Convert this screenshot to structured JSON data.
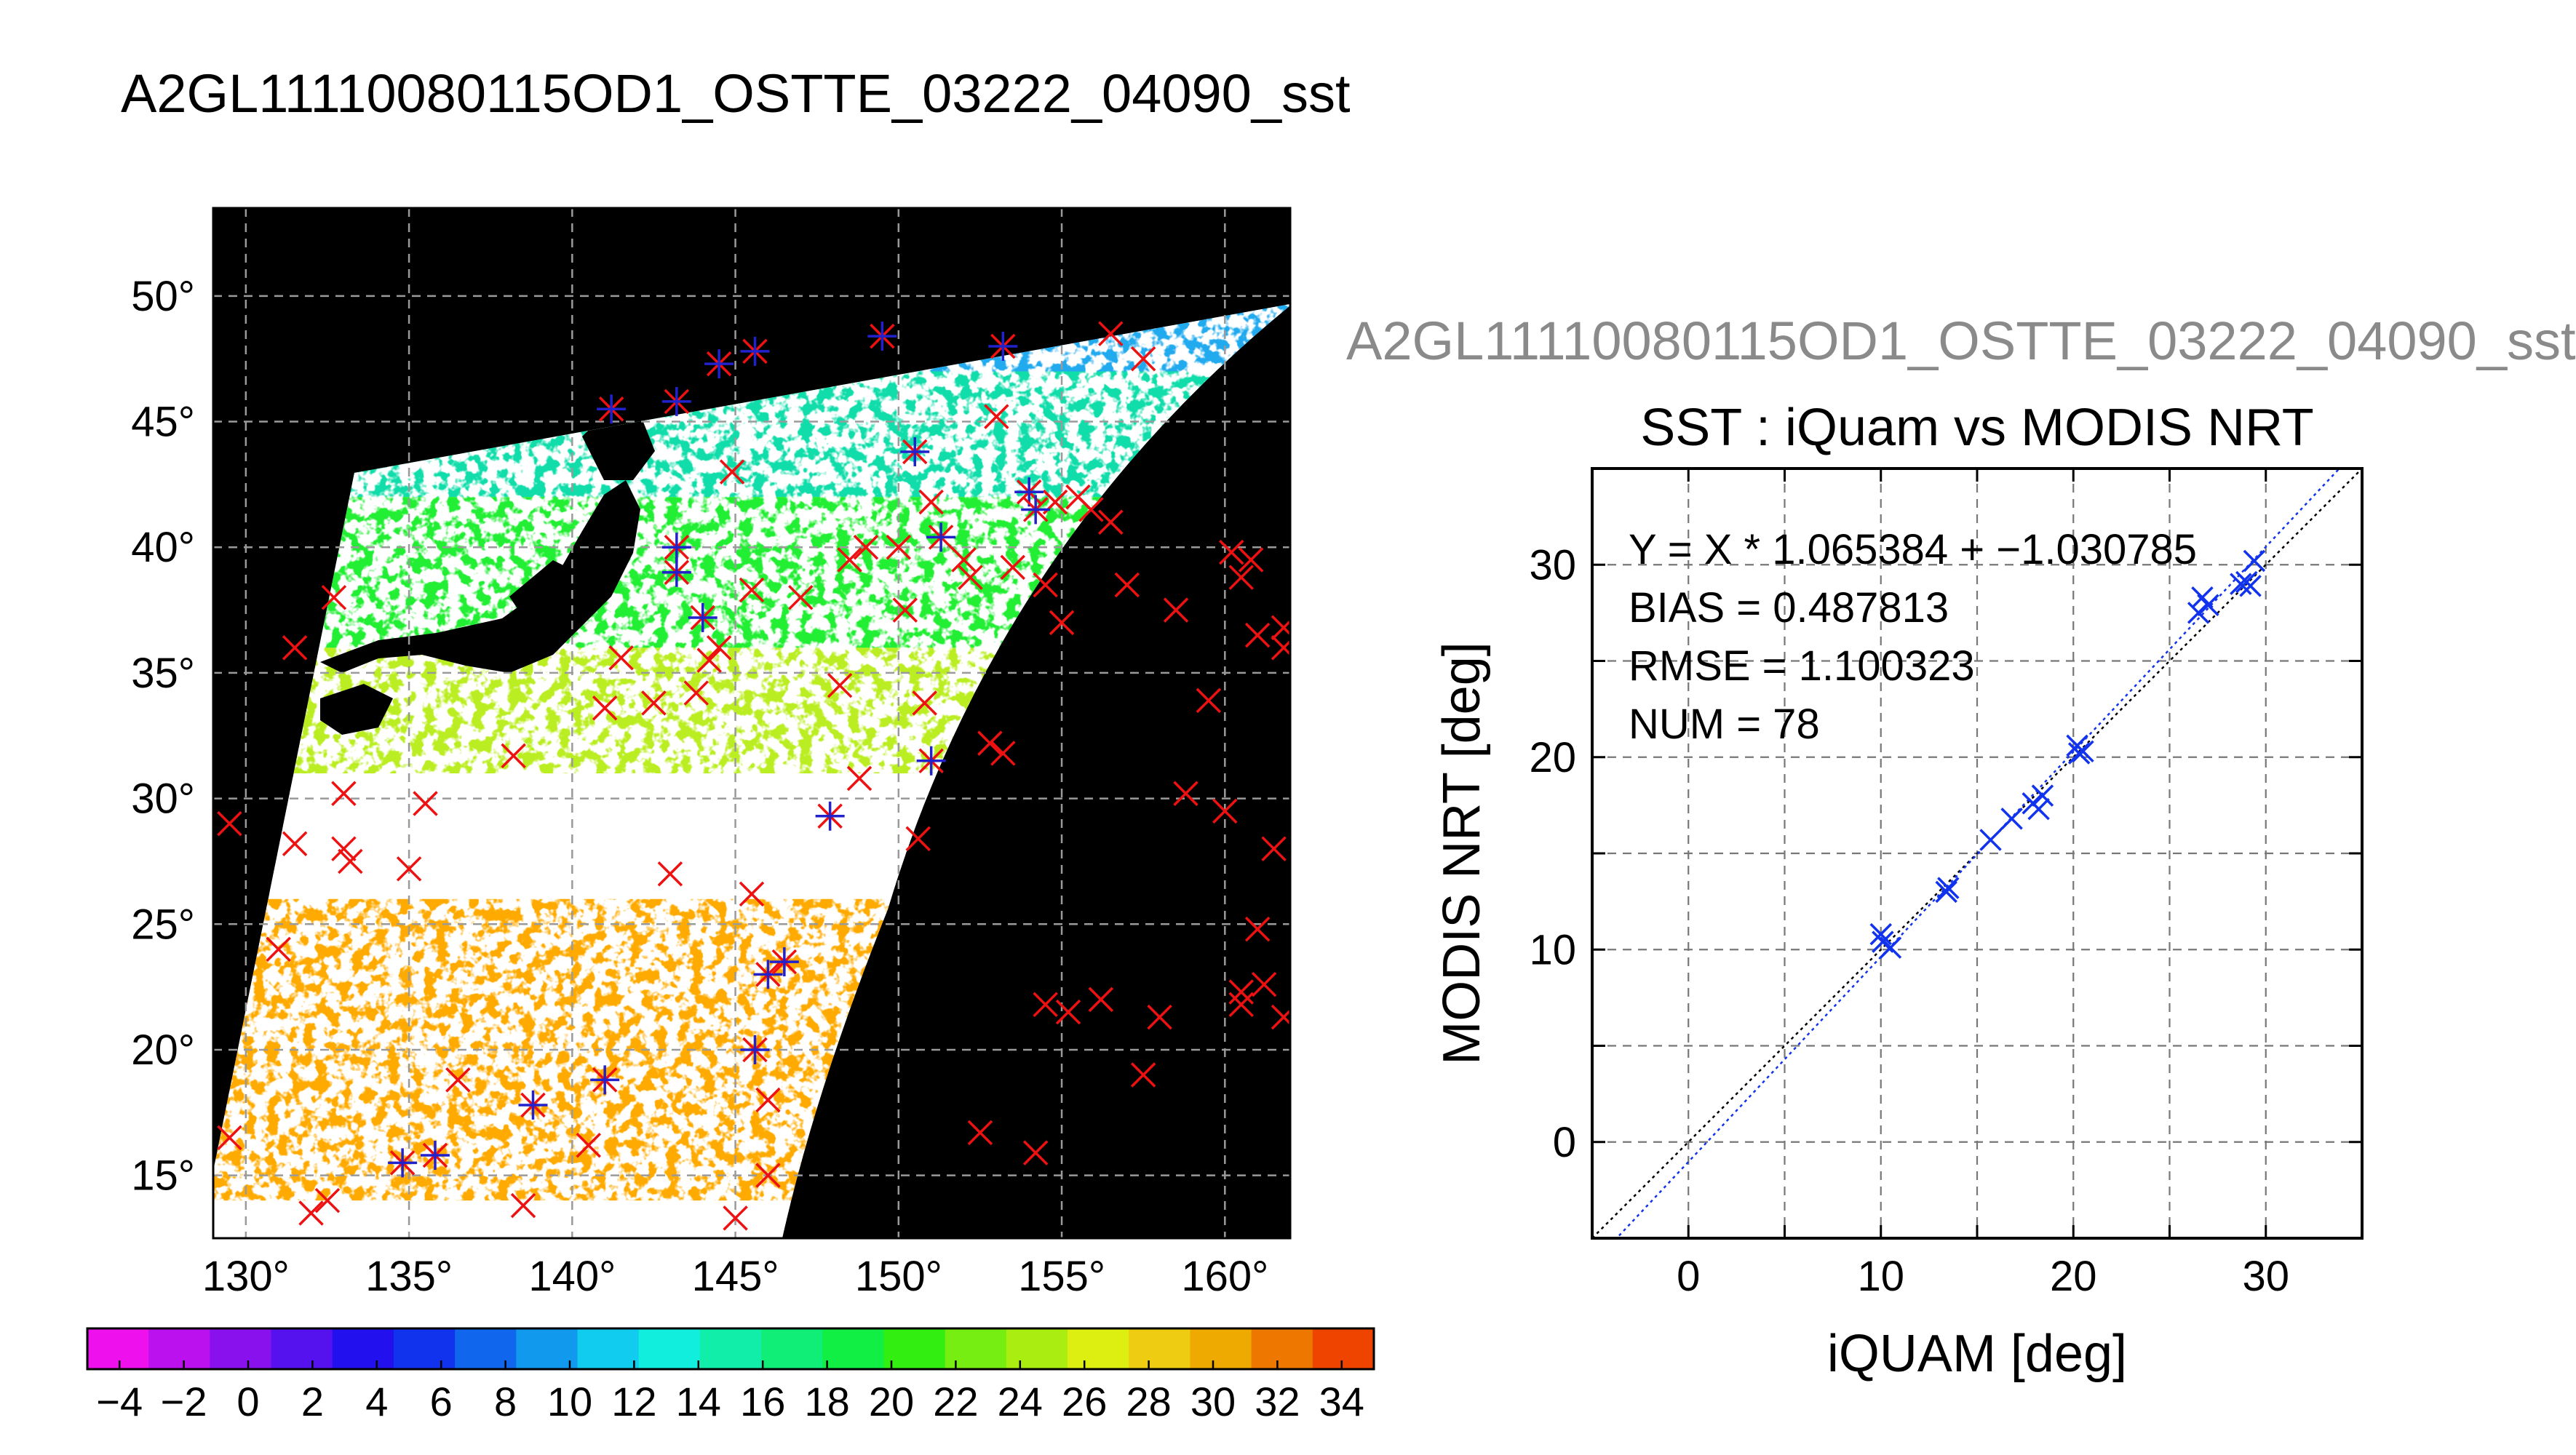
{
  "main_title": "A2GL11110080115OD1_OSTTE_03222_04090_sst",
  "secondary_title": "A2GL11110080115OD1_OSTTE_03222_04090_sst",
  "colors": {
    "background": "#ffffff",
    "land_mask": "#000000",
    "grid": "#9a9a9a",
    "marker_red": "#ee1111",
    "marker_blue": "#2222cc",
    "fit_line": "#1133ee",
    "identity_line": "#000000"
  },
  "chart_data": [
    {
      "type": "heatmap",
      "title": "",
      "x_ticks": [
        "130°",
        "135°",
        "140°",
        "145°",
        "150°",
        "155°",
        "160°"
      ],
      "y_ticks": [
        "15°",
        "20°",
        "25°",
        "30°",
        "35°",
        "40°",
        "45°",
        "50°"
      ],
      "xlim": [
        129,
        162
      ],
      "ylim": [
        12.5,
        53.5
      ],
      "x_tick_values": [
        130,
        135,
        140,
        145,
        150,
        155,
        160
      ],
      "y_tick_values": [
        15,
        20,
        25,
        30,
        35,
        40,
        45,
        50
      ],
      "grid": true,
      "colorbar": {
        "min": -5,
        "max": 35,
        "tick_labels": [
          "−4",
          "−2",
          "0",
          "2",
          "4",
          "6",
          "8",
          "10",
          "12",
          "14",
          "16",
          "18",
          "20",
          "22",
          "24",
          "26",
          "28",
          "30",
          "32",
          "34"
        ],
        "tick_values": [
          -4,
          -2,
          0,
          2,
          4,
          6,
          8,
          10,
          12,
          14,
          16,
          18,
          20,
          22,
          24,
          26,
          28,
          30,
          32,
          34
        ],
        "colors": [
          "#ee11ee",
          "#bb11ee",
          "#8811ee",
          "#5511ee",
          "#2211ee",
          "#1133ee",
          "#1166ee",
          "#1199ee",
          "#11ccee",
          "#11eedd",
          "#11eeaa",
          "#11ee77",
          "#11ee44",
          "#33ee11",
          "#77ee11",
          "#aaee11",
          "#ddee11",
          "#eecc11",
          "#eeaa00",
          "#ee7700",
          "#ee4400"
        ]
      },
      "sst_bands": [
        {
          "lat_range": [
            47,
            53
          ],
          "color": "#22aaee",
          "value": 8
        },
        {
          "lat_range": [
            42,
            47
          ],
          "color": "#11ddaa",
          "value": 14
        },
        {
          "lat_range": [
            36,
            42
          ],
          "color": "#22ee33",
          "value": 19
        },
        {
          "lat_range": [
            31,
            36
          ],
          "color": "#bbee22",
          "value": 24
        },
        {
          "lat_range": [
            14,
            26
          ],
          "color": "#ffaa00",
          "value": 29
        }
      ],
      "markers_red": [
        {
          "lon": 129.5,
          "lat": 29.0
        },
        {
          "lon": 129.5,
          "lat": 16.5
        },
        {
          "lon": 131.0,
          "lat": 24.0
        },
        {
          "lon": 131.5,
          "lat": 36.0
        },
        {
          "lon": 131.5,
          "lat": 28.2
        },
        {
          "lon": 132.0,
          "lat": 13.5
        },
        {
          "lon": 132.5,
          "lat": 14.0
        },
        {
          "lon": 132.7,
          "lat": 38.0
        },
        {
          "lon": 133.0,
          "lat": 30.2
        },
        {
          "lon": 133.0,
          "lat": 28.0
        },
        {
          "lon": 133.2,
          "lat": 27.5
        },
        {
          "lon": 135.0,
          "lat": 27.2
        },
        {
          "lon": 135.5,
          "lat": 29.8
        },
        {
          "lon": 136.5,
          "lat": 18.8
        },
        {
          "lon": 138.2,
          "lat": 31.7
        },
        {
          "lon": 138.5,
          "lat": 13.8
        },
        {
          "lon": 140.5,
          "lat": 16.2
        },
        {
          "lon": 141.0,
          "lat": 33.6
        },
        {
          "lon": 141.5,
          "lat": 35.6
        },
        {
          "lon": 142.5,
          "lat": 33.8
        },
        {
          "lon": 143.0,
          "lat": 27.0
        },
        {
          "lon": 143.8,
          "lat": 34.2
        },
        {
          "lon": 144.2,
          "lat": 35.5
        },
        {
          "lon": 144.5,
          "lat": 36.0
        },
        {
          "lon": 144.9,
          "lat": 43.0
        },
        {
          "lon": 145.0,
          "lat": 13.3
        },
        {
          "lon": 145.5,
          "lat": 26.2
        },
        {
          "lon": 145.5,
          "lat": 38.3
        },
        {
          "lon": 146.0,
          "lat": 15.0
        },
        {
          "lon": 146.0,
          "lat": 18.0
        },
        {
          "lon": 147.0,
          "lat": 38.0
        },
        {
          "lon": 148.2,
          "lat": 34.5
        },
        {
          "lon": 148.5,
          "lat": 39.5
        },
        {
          "lon": 148.8,
          "lat": 30.8
        },
        {
          "lon": 149.0,
          "lat": 40.0
        },
        {
          "lon": 150.0,
          "lat": 40.0
        },
        {
          "lon": 150.2,
          "lat": 37.5
        },
        {
          "lon": 150.6,
          "lat": 28.4
        },
        {
          "lon": 150.8,
          "lat": 33.8
        },
        {
          "lon": 151.0,
          "lat": 41.8
        },
        {
          "lon": 152.0,
          "lat": 39.5
        },
        {
          "lon": 152.2,
          "lat": 38.8
        },
        {
          "lon": 152.5,
          "lat": 16.7
        },
        {
          "lon": 152.8,
          "lat": 32.2
        },
        {
          "lon": 153.0,
          "lat": 45.2
        },
        {
          "lon": 153.2,
          "lat": 31.8
        },
        {
          "lon": 153.5,
          "lat": 39.2
        },
        {
          "lon": 154.2,
          "lat": 15.9
        },
        {
          "lon": 154.5,
          "lat": 21.8
        },
        {
          "lon": 154.5,
          "lat": 38.5
        },
        {
          "lon": 154.8,
          "lat": 41.8
        },
        {
          "lon": 155.0,
          "lat": 37.0
        },
        {
          "lon": 155.2,
          "lat": 21.5
        },
        {
          "lon": 155.5,
          "lat": 42.0
        },
        {
          "lon": 155.9,
          "lat": 41.5
        },
        {
          "lon": 156.2,
          "lat": 22.0
        },
        {
          "lon": 156.5,
          "lat": 48.5
        },
        {
          "lon": 156.5,
          "lat": 41.0
        },
        {
          "lon": 157.0,
          "lat": 38.5
        },
        {
          "lon": 157.5,
          "lat": 19.0
        },
        {
          "lon": 157.5,
          "lat": 47.5
        },
        {
          "lon": 158.0,
          "lat": 21.3
        },
        {
          "lon": 158.5,
          "lat": 37.5
        },
        {
          "lon": 158.8,
          "lat": 30.2
        },
        {
          "lon": 159.5,
          "lat": 33.9
        },
        {
          "lon": 160.0,
          "lat": 29.5
        },
        {
          "lon": 160.2,
          "lat": 39.8
        },
        {
          "lon": 160.5,
          "lat": 38.8
        },
        {
          "lon": 160.5,
          "lat": 22.3
        },
        {
          "lon": 160.5,
          "lat": 21.8
        },
        {
          "lon": 160.8,
          "lat": 39.5
        },
        {
          "lon": 161.0,
          "lat": 36.5
        },
        {
          "lon": 161.0,
          "lat": 24.8
        },
        {
          "lon": 161.2,
          "lat": 22.6
        },
        {
          "lon": 161.5,
          "lat": 28.0
        },
        {
          "lon": 161.8,
          "lat": 21.3
        },
        {
          "lon": 161.8,
          "lat": 36.8
        },
        {
          "lon": 161.8,
          "lat": 36.0
        }
      ],
      "markers_overlap": [
        {
          "lon": 141.2,
          "lat": 45.5
        },
        {
          "lon": 143.2,
          "lat": 45.8
        },
        {
          "lon": 143.2,
          "lat": 40.0
        },
        {
          "lon": 143.2,
          "lat": 39.0
        },
        {
          "lon": 144.0,
          "lat": 37.2
        },
        {
          "lon": 144.5,
          "lat": 47.3
        },
        {
          "lon": 145.6,
          "lat": 47.8
        },
        {
          "lon": 145.6,
          "lat": 20.0
        },
        {
          "lon": 146.0,
          "lat": 23.0
        },
        {
          "lon": 146.5,
          "lat": 23.5
        },
        {
          "lon": 147.9,
          "lat": 29.3
        },
        {
          "lon": 149.5,
          "lat": 48.4
        },
        {
          "lon": 150.5,
          "lat": 43.8
        },
        {
          "lon": 151.0,
          "lat": 31.5
        },
        {
          "lon": 151.3,
          "lat": 40.4
        },
        {
          "lon": 153.2,
          "lat": 48.0
        },
        {
          "lon": 154.0,
          "lat": 42.2
        },
        {
          "lon": 154.2,
          "lat": 41.5
        },
        {
          "lon": 134.8,
          "lat": 15.5
        },
        {
          "lon": 135.8,
          "lat": 15.8
        },
        {
          "lon": 138.8,
          "lat": 17.8
        },
        {
          "lon": 141.0,
          "lat": 18.8
        }
      ]
    },
    {
      "type": "scatter",
      "title": "SST : iQuam vs MODIS NRT",
      "xlabel": "iQUAM [deg]",
      "ylabel": "MODIS NRT [deg]",
      "xlim": [
        -5,
        35
      ],
      "ylim": [
        -5,
        35
      ],
      "x_ticks": [
        "0",
        "10",
        "20",
        "30"
      ],
      "y_ticks": [
        "0",
        "10",
        "20",
        "30"
      ],
      "x_tick_values": [
        0,
        10,
        20,
        30
      ],
      "y_tick_values": [
        0,
        10,
        20,
        30
      ],
      "grid": true,
      "annotations": [
        "Y = X * 1.065384 + −1.030785",
        "BIAS = 0.487813",
        "RMSE = 1.100323",
        "NUM = 78"
      ],
      "fit": {
        "slope": 1.065384,
        "intercept": -1.030785
      },
      "x": [
        10.0,
        10.1,
        10.5,
        13.4,
        13.5,
        15.7,
        16.8,
        17.9,
        18.2,
        18.4,
        20.2,
        20.3,
        20.5,
        26.5,
        26.7,
        27.0,
        28.7,
        29.0,
        29.2,
        29.4
      ],
      "y": [
        10.8,
        10.4,
        10.1,
        13.0,
        13.2,
        15.7,
        16.8,
        17.6,
        17.3,
        18.0,
        20.6,
        20.2,
        20.3,
        27.5,
        28.3,
        27.9,
        29.0,
        29.1,
        28.9,
        30.2
      ]
    }
  ]
}
